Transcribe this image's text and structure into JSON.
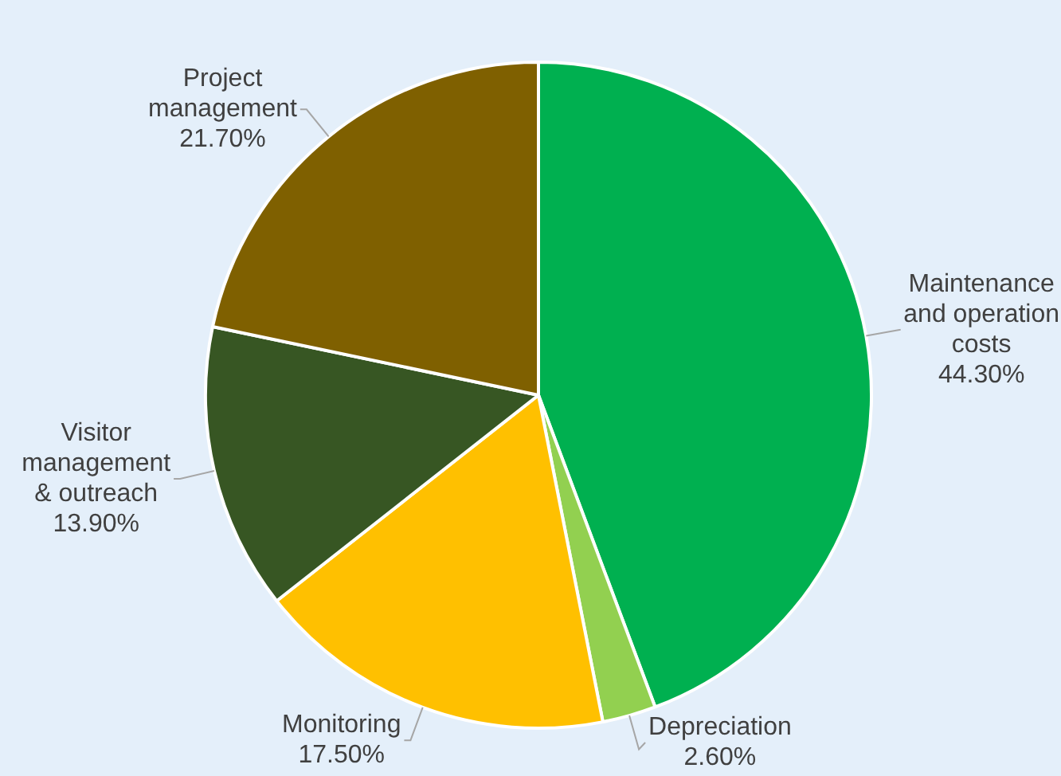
{
  "chart_data": {
    "type": "pie",
    "categories": [
      "Maintenance and operation costs",
      "Depreciation",
      "Monitoring",
      "Visitor management & outreach",
      "Project management"
    ],
    "values": [
      44.3,
      2.6,
      17.5,
      13.9,
      21.7
    ],
    "value_labels": [
      "44.30%",
      "2.60%",
      "17.50%",
      "13.90%",
      "21.70%"
    ],
    "colors": [
      "#00b050",
      "#92d050",
      "#ffc000",
      "#375623",
      "#7f6000"
    ],
    "legend": false
  }
}
